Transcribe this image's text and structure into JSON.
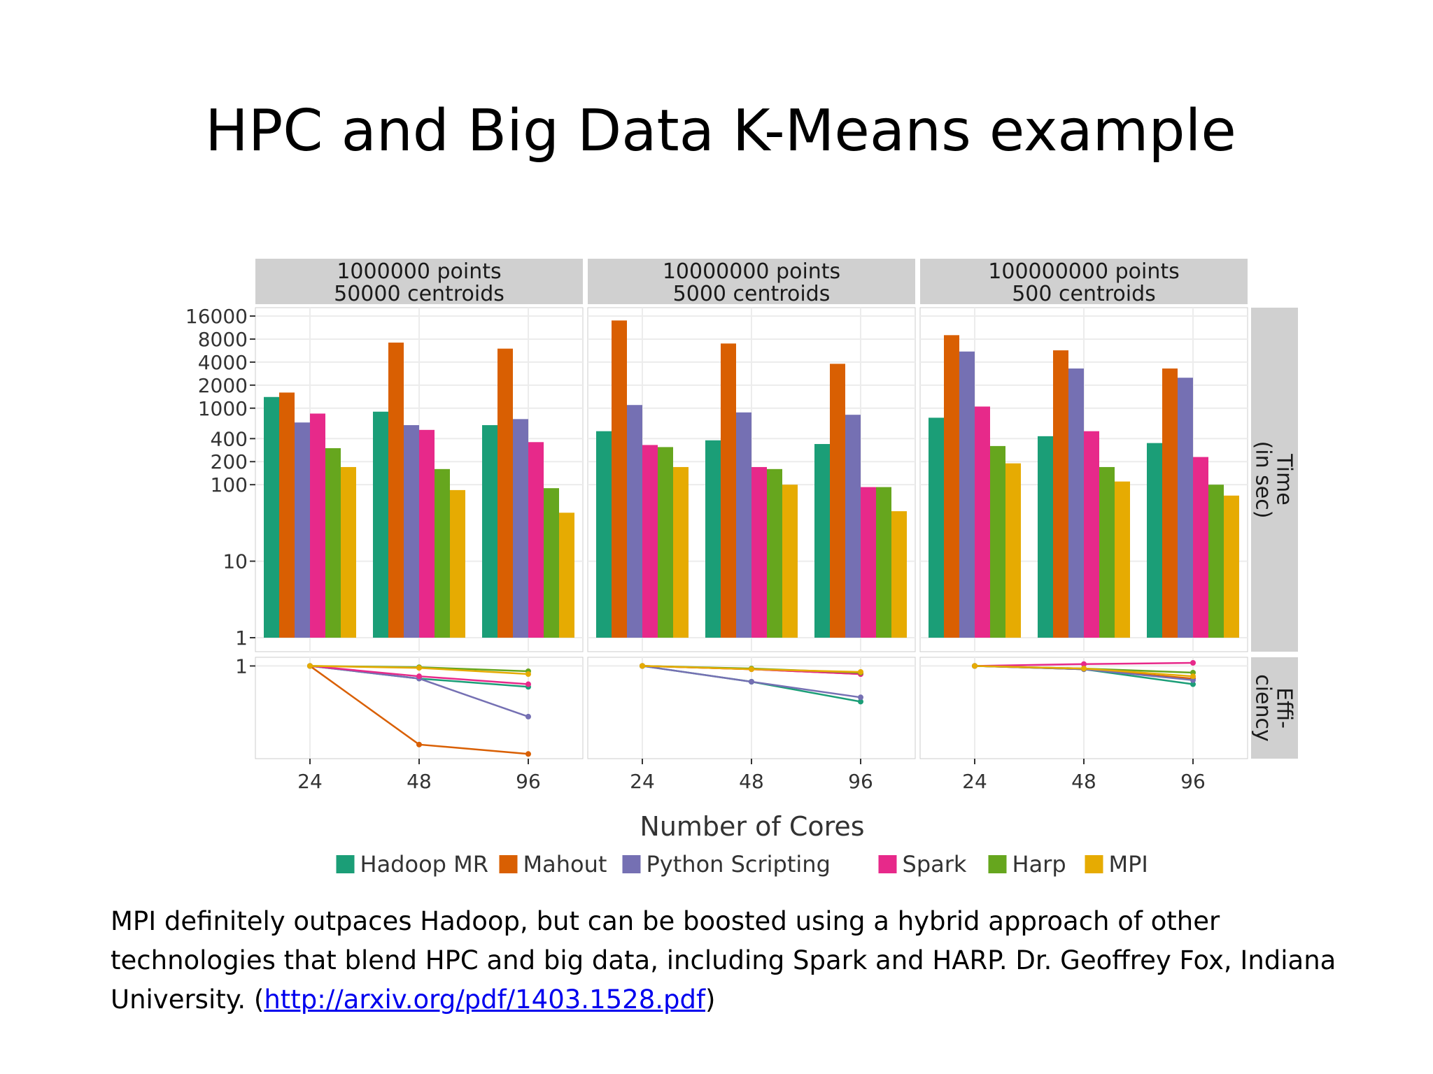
{
  "title": "HPC and Big Data K-Means example",
  "caption": {
    "text": "MPI definitely outpaces Hadoop, but can be boosted using a hybrid approach of other technologies that blend HPC and big data, including Spark and HARP. Dr. Geoffrey Fox, Indiana University. (",
    "link": "http://arxiv.org/pdf/1403.1528.pdf",
    "after": ")"
  },
  "chart_data": {
    "type": "bar",
    "xlabel": "Number of Cores",
    "x": [
      "24",
      "48",
      "96"
    ],
    "legend_position": "bottom",
    "grid": true,
    "panels": [
      {
        "label_line1": "1000000 points",
        "label_line2": "50000 centroids"
      },
      {
        "label_line1": "10000000 points",
        "label_line2": "5000 centroids"
      },
      {
        "label_line1": "100000000 points",
        "label_line2": "500 centroids"
      }
    ],
    "series": [
      {
        "name": "Hadoop MR",
        "color": "#1b9e77"
      },
      {
        "name": "Mahout",
        "color": "#d95f02"
      },
      {
        "name": "Python Scripting",
        "color": "#7570b3"
      },
      {
        "name": "Spark",
        "color": "#e7298a"
      },
      {
        "name": "Harp",
        "color": "#66a61e"
      },
      {
        "name": "MPI",
        "color": "#e6ab02"
      }
    ],
    "time": {
      "strip_label_line1": "Time",
      "strip_label_line2": "(in sec)",
      "scale": "log",
      "ylim": [
        1,
        16000
      ],
      "ticks": [
        {
          "value": 1,
          "label": "1"
        },
        {
          "value": 10,
          "label": "10"
        },
        {
          "value": 100,
          "label": "100"
        },
        {
          "value": 200,
          "label": "200"
        },
        {
          "value": 400,
          "label": "400"
        },
        {
          "value": 1000,
          "label": "1000"
        },
        {
          "value": 2000,
          "label": "2000"
        },
        {
          "value": 4000,
          "label": "4000"
        },
        {
          "value": 8000,
          "label": "8000"
        },
        {
          "value": 16000,
          "label": "16000"
        }
      ],
      "values": [
        [
          [
            1400,
            1600,
            650,
            850,
            300,
            170
          ],
          [
            900,
            7200,
            600,
            520,
            160,
            85
          ],
          [
            600,
            6000,
            720,
            360,
            90,
            43
          ]
        ],
        [
          [
            500,
            14000,
            1100,
            330,
            310,
            170
          ],
          [
            380,
            7000,
            880,
            170,
            160,
            100
          ],
          [
            340,
            3800,
            820,
            93,
            93,
            45
          ]
        ],
        [
          [
            750,
            9000,
            5500,
            1050,
            320,
            190
          ],
          [
            430,
            5700,
            3300,
            500,
            170,
            110
          ],
          [
            350,
            3300,
            2500,
            230,
            100,
            72
          ]
        ]
      ]
    },
    "efficiency": {
      "strip_label_line1": "Effi-",
      "strip_label_line2": "ciency",
      "scale": "log",
      "ylim": [
        0.24,
        1.05
      ],
      "ticks": [
        {
          "value": 1,
          "label": "1"
        }
      ],
      "values": [
        [
          [
            1,
            0.82,
            0.72
          ],
          [
            1,
            0.29,
            0.25
          ],
          [
            1,
            0.82,
            0.45
          ],
          [
            1,
            0.85,
            0.75
          ],
          [
            1,
            0.98,
            0.92
          ],
          [
            1,
            0.97,
            0.88
          ]
        ],
        [
          [
            1,
            0.78,
            0.57
          ],
          [
            1,
            0.95,
            0.88
          ],
          [
            1,
            0.78,
            0.61
          ],
          [
            1,
            0.95,
            0.88
          ],
          [
            1,
            0.96,
            0.9
          ],
          [
            1,
            0.95,
            0.91
          ]
        ],
        [
          [
            1,
            0.95,
            0.75
          ],
          [
            1,
            0.95,
            0.82
          ],
          [
            1,
            0.95,
            0.8
          ],
          [
            1,
            1.03,
            1.05
          ],
          [
            1,
            0.96,
            0.9
          ],
          [
            1,
            0.96,
            0.85
          ]
        ]
      ]
    }
  }
}
